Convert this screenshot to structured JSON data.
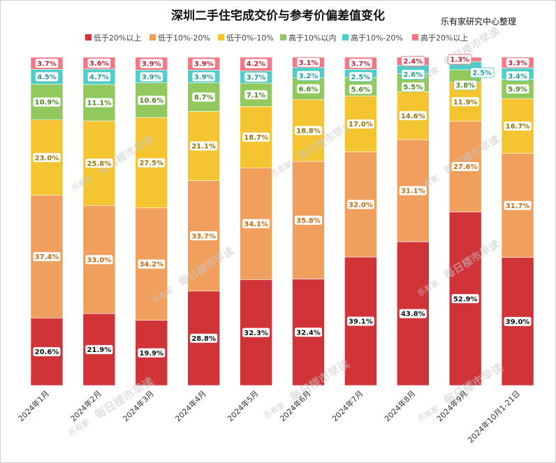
{
  "chart_data": {
    "type": "bar",
    "stacked": true,
    "title": "深圳二手住宅成交价与参考价偏差值变化",
    "source_note": "乐有家研究中心整理",
    "watermark_text": "每日楼市早读",
    "watermark_logo": "乐有家",
    "legend_position": "top",
    "categories": [
      "2024年1月",
      "2024年2月",
      "2024年3月",
      "2024年4月",
      "2024年5月",
      "2024年6月",
      "2024年7月",
      "2024年8月",
      "2024年9月",
      "2024年10月1-21日"
    ],
    "ylim": [
      0,
      100
    ],
    "grid": false,
    "series": [
      {
        "name": "低于20%以上",
        "color": "#d13438",
        "values": [
          20.6,
          21.9,
          19.9,
          28.8,
          32.3,
          32.4,
          39.1,
          43.8,
          52.9,
          39.0
        ],
        "labels": [
          "20.6%",
          "21.9%",
          "19.9%",
          "28.8%",
          "32.3%",
          "32.4%",
          "39.1%",
          "43.8%",
          "52.9%",
          "39.0%"
        ]
      },
      {
        "name": "低于10%-20%",
        "color": "#f0a05c",
        "values": [
          37.4,
          33.0,
          34.2,
          33.7,
          34.1,
          35.8,
          32.0,
          31.1,
          27.6,
          31.7
        ],
        "labels": [
          "37.4%",
          "33.0%",
          "34.2%",
          "33.7%",
          "34.1%",
          "35.8%",
          "32.0%",
          "31.1%",
          "27.6%",
          "31.7%"
        ]
      },
      {
        "name": "低于0%-10%",
        "color": "#f4c531",
        "values": [
          23.0,
          25.8,
          27.5,
          21.1,
          18.7,
          18.8,
          17.0,
          14.6,
          11.9,
          16.7
        ],
        "labels": [
          "23.0%",
          "25.8%",
          "27.5%",
          "21.1%",
          "18.7%",
          "18.8%",
          "17.0%",
          "14.6%",
          "11.9%",
          "16.7%"
        ]
      },
      {
        "name": "高于10%以内",
        "color": "#92c95f",
        "values": [
          10.9,
          11.1,
          10.6,
          8.7,
          7.1,
          6.6,
          5.6,
          5.5,
          3.8,
          5.9
        ],
        "labels": [
          "10.9%",
          "11.1%",
          "10.6%",
          "8.7%",
          "7.1%",
          "6.6%",
          "5.6%",
          "5.5%",
          "3.8%",
          "5.9%"
        ]
      },
      {
        "name": "高于10%-20%",
        "color": "#4fcdc8",
        "values": [
          4.5,
          4.7,
          3.9,
          3.9,
          3.7,
          3.2,
          2.5,
          2.6,
          2.5,
          3.4
        ],
        "labels": [
          "4.5%",
          "4.7%",
          "3.9%",
          "3.9%",
          "3.7%",
          "3.2%",
          "2.5%",
          "2.6%",
          "2.5%",
          "3.4%"
        ]
      },
      {
        "name": "高于20%以上",
        "color": "#f47785",
        "values": [
          3.7,
          3.6,
          3.9,
          3.9,
          4.2,
          3.1,
          3.7,
          2.4,
          1.3,
          3.3
        ],
        "labels": [
          "3.7%",
          "3.6%",
          "3.9%",
          "3.9%",
          "4.2%",
          "3.1%",
          "3.7%",
          "2.4%",
          "1.3%",
          "3.3%"
        ]
      }
    ]
  }
}
